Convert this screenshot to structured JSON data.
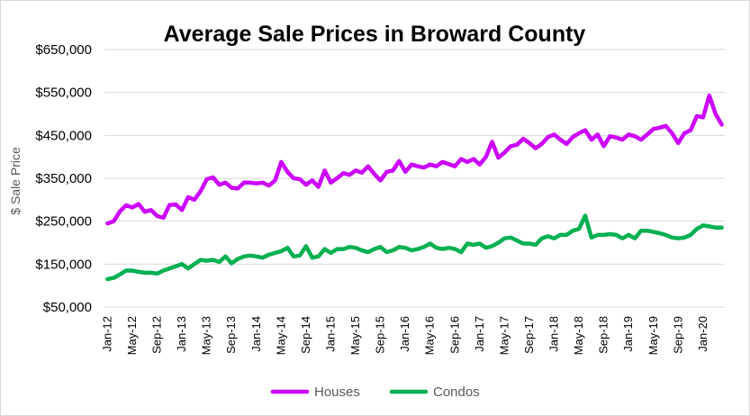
{
  "chart_data": {
    "type": "line",
    "title": "Average Sale Prices in Broward County",
    "xlabel": "",
    "ylabel": "$ Sale Price",
    "ylim": [
      50000,
      650000
    ],
    "yticks": [
      50000,
      150000,
      250000,
      350000,
      450000,
      550000,
      650000
    ],
    "ytick_labels": [
      "$50,000",
      "$150,000",
      "$250,000",
      "$350,000",
      "$450,000",
      "$550,000",
      "$650,000"
    ],
    "xtick_labels": [
      "Jan-12",
      "May-12",
      "Sep-12",
      "Jan-13",
      "May-13",
      "Sep-13",
      "Jan-14",
      "May-14",
      "Sep-14",
      "Jan-15",
      "May-15",
      "Sep-15",
      "Jan-16",
      "May-16",
      "Sep-16",
      "Jan-17",
      "May-17",
      "Sep-17",
      "Jan-18",
      "May-18",
      "Sep-18",
      "Jan-19",
      "May-19",
      "Sep-19",
      "Jan-20"
    ],
    "x_start": "Jan-12",
    "x_end": "Jun-20",
    "grid": true,
    "legend_position": "bottom",
    "series": [
      {
        "name": "Houses",
        "color": "#cc00ff",
        "values": [
          245000,
          250000,
          273000,
          287000,
          282000,
          290000,
          272000,
          276000,
          262000,
          258000,
          288000,
          289000,
          276000,
          306000,
          300000,
          320000,
          348000,
          352000,
          335000,
          340000,
          328000,
          326000,
          340000,
          340000,
          338000,
          340000,
          333000,
          345000,
          388000,
          365000,
          350000,
          348000,
          335000,
          345000,
          330000,
          368000,
          340000,
          350000,
          362000,
          358000,
          368000,
          363000,
          378000,
          360000,
          345000,
          365000,
          368000,
          390000,
          365000,
          382000,
          378000,
          375000,
          382000,
          378000,
          388000,
          383000,
          378000,
          395000,
          388000,
          395000,
          382000,
          400000,
          435000,
          398000,
          410000,
          425000,
          428000,
          442000,
          432000,
          420000,
          430000,
          446000,
          452000,
          440000,
          430000,
          446000,
          455000,
          462000,
          440000,
          452000,
          425000,
          448000,
          445000,
          440000,
          452000,
          448000,
          440000,
          452000,
          465000,
          468000,
          472000,
          455000,
          432000,
          455000,
          462000,
          495000,
          492000,
          543000,
          500000,
          475000
        ]
      },
      {
        "name": "Condos",
        "color": "#00b050",
        "values": [
          115000,
          118000,
          126000,
          135000,
          135000,
          132000,
          130000,
          130000,
          128000,
          135000,
          140000,
          145000,
          150000,
          140000,
          150000,
          160000,
          158000,
          160000,
          155000,
          168000,
          152000,
          162000,
          168000,
          170000,
          168000,
          165000,
          172000,
          176000,
          180000,
          188000,
          168000,
          170000,
          192000,
          165000,
          168000,
          185000,
          176000,
          185000,
          185000,
          190000,
          188000,
          182000,
          178000,
          185000,
          190000,
          178000,
          182000,
          190000,
          188000,
          182000,
          185000,
          190000,
          198000,
          188000,
          185000,
          188000,
          185000,
          178000,
          198000,
          195000,
          198000,
          188000,
          192000,
          200000,
          210000,
          212000,
          205000,
          198000,
          198000,
          195000,
          210000,
          215000,
          210000,
          218000,
          218000,
          228000,
          232000,
          263000,
          212000,
          218000,
          218000,
          220000,
          218000,
          210000,
          218000,
          210000,
          228000,
          228000,
          225000,
          222000,
          218000,
          212000,
          210000,
          212000,
          218000,
          232000,
          240000,
          238000,
          235000,
          235000
        ]
      }
    ]
  }
}
